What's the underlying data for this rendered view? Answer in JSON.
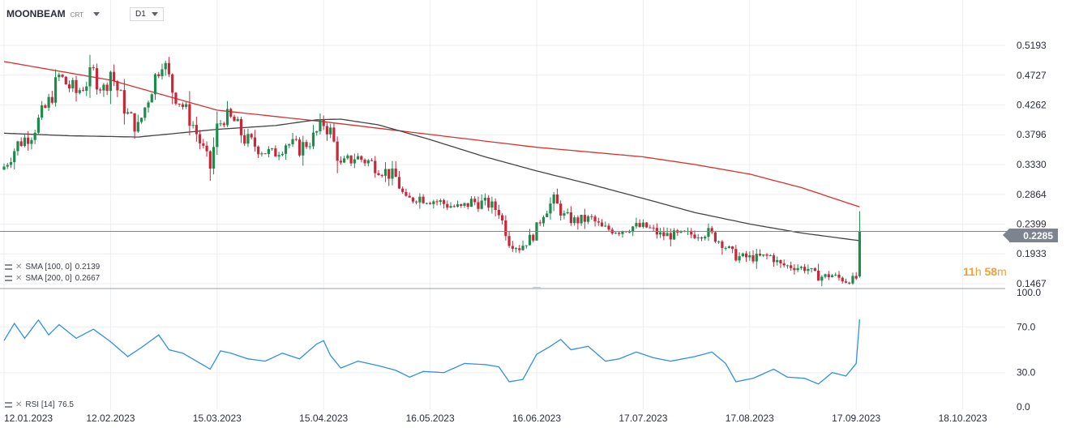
{
  "header": {
    "symbol": "MOONBEAM",
    "symbol_suffix": "CRT",
    "timeframe": "D1"
  },
  "indicators": {
    "sma100": {
      "label": "SMA [100, 0]",
      "value": "0.2139",
      "color": "#444444"
    },
    "sma200": {
      "label": "SMA [200, 0]",
      "value": "0.2667",
      "color": "#d9302c"
    },
    "rsi": {
      "label": "RSI [14]",
      "value": "76.5",
      "color": "#2f8fe8"
    }
  },
  "countdown": {
    "hours": "11",
    "hours_unit": "h",
    "minutes": "58",
    "minutes_unit": "m"
  },
  "current_price": {
    "label": "0.2285",
    "value": 0.2285
  },
  "chart_data": [
    {
      "type": "candlestick",
      "title": "",
      "price_axis_ticks": [
        "0.5193",
        "0.4727",
        "0.4262",
        "0.3796",
        "0.3330",
        "0.2864",
        "0.2399",
        "0.1933",
        "0.1467"
      ],
      "price_axis_values": [
        0.5193,
        0.4727,
        0.4262,
        0.3796,
        0.333,
        0.2864,
        0.2399,
        0.1933,
        0.1467
      ],
      "ylim": [
        0.1383,
        0.5542
      ],
      "date_ticks": [
        "12.01.2023",
        "12.02.2023",
        "15.03.2023",
        "15.04.2023",
        "16.05.2023",
        "16.06.2023",
        "17.07.2023",
        "17.08.2023",
        "17.09.2023",
        "18.10.2023"
      ],
      "close_anchors": [
        [
          "2023-01-12",
          0.33
        ],
        [
          "2023-01-16",
          0.365
        ],
        [
          "2023-01-20",
          0.382
        ],
        [
          "2023-01-25",
          0.43
        ],
        [
          "2023-01-28",
          0.47
        ],
        [
          "2023-02-02",
          0.445
        ],
        [
          "2023-02-07",
          0.475
        ],
        [
          "2023-02-10",
          0.45
        ],
        [
          "2023-02-12",
          0.48
        ],
        [
          "2023-02-14",
          0.45
        ],
        [
          "2023-02-17",
          0.41
        ],
        [
          "2023-02-20",
          0.39
        ],
        [
          "2023-02-24",
          0.455
        ],
        [
          "2023-02-27",
          0.5
        ],
        [
          "2023-03-02",
          0.45
        ],
        [
          "2023-03-05",
          0.425
        ],
        [
          "2023-03-08",
          0.395
        ],
        [
          "2023-03-11",
          0.355
        ],
        [
          "2023-03-13",
          0.328
        ],
        [
          "2023-03-15",
          0.39
        ],
        [
          "2023-03-17",
          0.408
        ],
        [
          "2023-03-20",
          0.4
        ],
        [
          "2023-03-23",
          0.373
        ],
        [
          "2023-03-27",
          0.36
        ],
        [
          "2023-03-31",
          0.348
        ],
        [
          "2023-04-04",
          0.367
        ],
        [
          "2023-04-08",
          0.358
        ],
        [
          "2023-04-12",
          0.375
        ],
        [
          "2023-04-15",
          0.398
        ],
        [
          "2023-04-17",
          0.384
        ],
        [
          "2023-04-20",
          0.33
        ],
        [
          "2023-04-24",
          0.345
        ],
        [
          "2023-04-28",
          0.338
        ],
        [
          "2023-05-03",
          0.322
        ],
        [
          "2023-05-06",
          0.312
        ],
        [
          "2023-05-09",
          0.275
        ],
        [
          "2023-05-12",
          0.283
        ],
        [
          "2023-05-16",
          0.279
        ],
        [
          "2023-05-20",
          0.272
        ],
        [
          "2023-05-25",
          0.264
        ],
        [
          "2023-05-28",
          0.275
        ],
        [
          "2023-06-02",
          0.271
        ],
        [
          "2023-06-05",
          0.26
        ],
        [
          "2023-06-08",
          0.212
        ],
        [
          "2023-06-11",
          0.203
        ],
        [
          "2023-06-15",
          0.222
        ],
        [
          "2023-06-18",
          0.258
        ],
        [
          "2023-06-21",
          0.277
        ],
        [
          "2023-06-24",
          0.252
        ],
        [
          "2023-06-27",
          0.245
        ],
        [
          "2023-07-02",
          0.248
        ],
        [
          "2023-07-05",
          0.233
        ],
        [
          "2023-07-10",
          0.23
        ],
        [
          "2023-07-14",
          0.236
        ],
        [
          "2023-07-18",
          0.235
        ],
        [
          "2023-07-22",
          0.223
        ],
        [
          "2023-07-27",
          0.222
        ],
        [
          "2023-08-02",
          0.225
        ],
        [
          "2023-08-05",
          0.227
        ],
        [
          "2023-08-09",
          0.21
        ],
        [
          "2023-08-13",
          0.189
        ],
        [
          "2023-08-18",
          0.187
        ],
        [
          "2023-08-23",
          0.19
        ],
        [
          "2023-08-26",
          0.176
        ],
        [
          "2023-08-30",
          0.173
        ],
        [
          "2023-09-03",
          0.17
        ],
        [
          "2023-09-06",
          0.157
        ],
        [
          "2023-09-10",
          0.16
        ],
        [
          "2023-09-14",
          0.151
        ],
        [
          "2023-09-17",
          0.155
        ],
        [
          "2023-09-18",
          0.2285
        ]
      ],
      "last_candle": {
        "date": "2023-09-18",
        "open": 0.158,
        "high": 0.26,
        "low": 0.156,
        "close": 0.2285
      },
      "sma100_anchors": [
        [
          "2023-01-12",
          0.382
        ],
        [
          "2023-01-31",
          0.378
        ],
        [
          "2023-02-20",
          0.376
        ],
        [
          "2023-03-15",
          0.388
        ],
        [
          "2023-04-01",
          0.394
        ],
        [
          "2023-04-13",
          0.403
        ],
        [
          "2023-04-20",
          0.404
        ],
        [
          "2023-05-01",
          0.395
        ],
        [
          "2023-05-16",
          0.372
        ],
        [
          "2023-06-01",
          0.345
        ],
        [
          "2023-06-16",
          0.323
        ],
        [
          "2023-07-01",
          0.303
        ],
        [
          "2023-07-17",
          0.28
        ],
        [
          "2023-08-01",
          0.258
        ],
        [
          "2023-08-17",
          0.24
        ],
        [
          "2023-09-01",
          0.226
        ],
        [
          "2023-09-18",
          0.2139
        ]
      ],
      "sma200_anchors": [
        [
          "2023-01-12",
          0.494
        ],
        [
          "2023-02-12",
          0.465
        ],
        [
          "2023-03-15",
          0.418
        ],
        [
          "2023-04-15",
          0.4
        ],
        [
          "2023-05-16",
          0.38
        ],
        [
          "2023-06-16",
          0.36
        ],
        [
          "2023-07-17",
          0.345
        ],
        [
          "2023-08-01",
          0.333
        ],
        [
          "2023-08-17",
          0.318
        ],
        [
          "2023-09-01",
          0.297
        ],
        [
          "2023-09-18",
          0.2667
        ]
      ]
    },
    {
      "type": "line",
      "title": "",
      "series_name": "RSI [14]",
      "y_ticks": [
        "100.0",
        "70.0",
        "30.0",
        "0.0"
      ],
      "y_tick_values": [
        100,
        70,
        30,
        0
      ],
      "ylim": [
        0,
        100
      ],
      "anchors": [
        [
          "2023-01-12",
          58
        ],
        [
          "2023-01-15",
          73
        ],
        [
          "2023-01-18",
          60
        ],
        [
          "2023-01-22",
          76
        ],
        [
          "2023-01-25",
          63
        ],
        [
          "2023-01-28",
          72
        ],
        [
          "2023-02-02",
          60
        ],
        [
          "2023-02-07",
          68
        ],
        [
          "2023-02-12",
          57
        ],
        [
          "2023-02-17",
          44
        ],
        [
          "2023-02-21",
          52
        ],
        [
          "2023-02-26",
          63
        ],
        [
          "2023-03-01",
          50
        ],
        [
          "2023-03-05",
          47
        ],
        [
          "2023-03-09",
          40
        ],
        [
          "2023-03-13",
          33
        ],
        [
          "2023-03-16",
          49
        ],
        [
          "2023-03-19",
          47
        ],
        [
          "2023-03-24",
          42
        ],
        [
          "2023-03-29",
          40
        ],
        [
          "2023-04-03",
          47
        ],
        [
          "2023-04-08",
          42
        ],
        [
          "2023-04-13",
          55
        ],
        [
          "2023-04-15",
          58
        ],
        [
          "2023-04-17",
          45
        ],
        [
          "2023-04-20",
          34
        ],
        [
          "2023-04-25",
          40
        ],
        [
          "2023-05-01",
          36
        ],
        [
          "2023-05-06",
          32
        ],
        [
          "2023-05-10",
          26
        ],
        [
          "2023-05-14",
          31
        ],
        [
          "2023-05-20",
          30
        ],
        [
          "2023-05-26",
          38
        ],
        [
          "2023-06-01",
          37
        ],
        [
          "2023-06-05",
          35
        ],
        [
          "2023-06-08",
          22
        ],
        [
          "2023-06-12",
          24
        ],
        [
          "2023-06-16",
          46
        ],
        [
          "2023-06-20",
          53
        ],
        [
          "2023-06-23",
          59
        ],
        [
          "2023-06-26",
          50
        ],
        [
          "2023-07-01",
          53
        ],
        [
          "2023-07-06",
          40
        ],
        [
          "2023-07-10",
          42
        ],
        [
          "2023-07-15",
          48
        ],
        [
          "2023-07-20",
          43
        ],
        [
          "2023-07-25",
          40
        ],
        [
          "2023-08-01",
          44
        ],
        [
          "2023-08-06",
          48
        ],
        [
          "2023-08-10",
          38
        ],
        [
          "2023-08-13",
          22
        ],
        [
          "2023-08-18",
          25
        ],
        [
          "2023-08-24",
          33
        ],
        [
          "2023-08-28",
          26
        ],
        [
          "2023-09-02",
          25
        ],
        [
          "2023-09-06",
          20
        ],
        [
          "2023-09-10",
          30
        ],
        [
          "2023-09-14",
          27
        ],
        [
          "2023-09-17",
          38
        ],
        [
          "2023-09-18",
          76.5
        ]
      ]
    }
  ]
}
